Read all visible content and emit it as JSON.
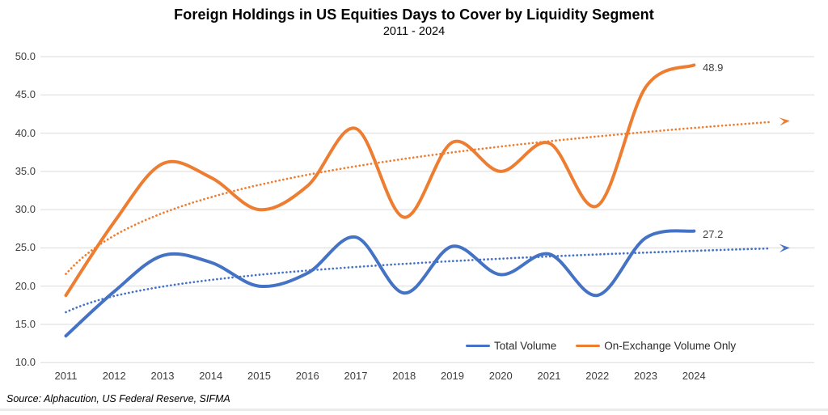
{
  "title": "Foreign Holdings in US Equities Days to Cover by Liquidity Segment",
  "subtitle": "2011 - 2024",
  "source": "Source: Alphacution, US Federal Reserve, SIFMA",
  "colors": {
    "total_volume": "#4472C4",
    "on_exchange": "#ED7D31",
    "gridline": "#DBDBDB",
    "tick_text": "#3d3d3d",
    "label_text": "#404040"
  },
  "chart_data": {
    "type": "line",
    "title": "Foreign Holdings in US Equities Days to Cover by Liquidity Segment",
    "subtitle": "2011 - 2024",
    "x": [
      2011,
      2012,
      2013,
      2014,
      2015,
      2016,
      2017,
      2018,
      2019,
      2020,
      2021,
      2022,
      2023,
      2024
    ],
    "series": [
      {
        "name": "Total Volume",
        "color": "#4472C4",
        "style": "smooth-solid",
        "values": [
          13.5,
          19.3,
          24.0,
          23.1,
          20.0,
          21.7,
          26.4,
          19.1,
          25.2,
          21.5,
          24.2,
          18.8,
          26.3,
          27.2
        ],
        "end_label": "27.2"
      },
      {
        "name": "On-Exchange Volume Only",
        "color": "#ED7D31",
        "style": "smooth-solid",
        "values": [
          18.8,
          28.4,
          36.0,
          34.2,
          30.0,
          33.1,
          40.6,
          29.0,
          38.8,
          35.0,
          38.7,
          30.5,
          46.0,
          48.9
        ],
        "end_label": "48.9"
      }
    ],
    "trendlines": [
      {
        "for": "Total Volume",
        "color": "#4472C4",
        "style": "dotted-arrow",
        "shape": "logarithmic",
        "start_value": 16.6,
        "end_value": 25.0
      },
      {
        "for": "On-Exchange Volume Only",
        "color": "#ED7D31",
        "style": "dotted-arrow",
        "shape": "logarithmic",
        "start_value": 21.6,
        "end_value": 41.6
      }
    ],
    "y_ticks": [
      50.0,
      45.0,
      40.0,
      35.0,
      30.0,
      25.0,
      20.0,
      15.0,
      10.0
    ],
    "y_tick_labels": [
      "50.0",
      "45.0",
      "40.0",
      "35.0",
      "30.0",
      "25.0",
      "20.0",
      "15.0",
      "10.0"
    ],
    "ylim": [
      10,
      50
    ],
    "grid": "horizontal",
    "legend_position": "inside-bottom-right"
  }
}
